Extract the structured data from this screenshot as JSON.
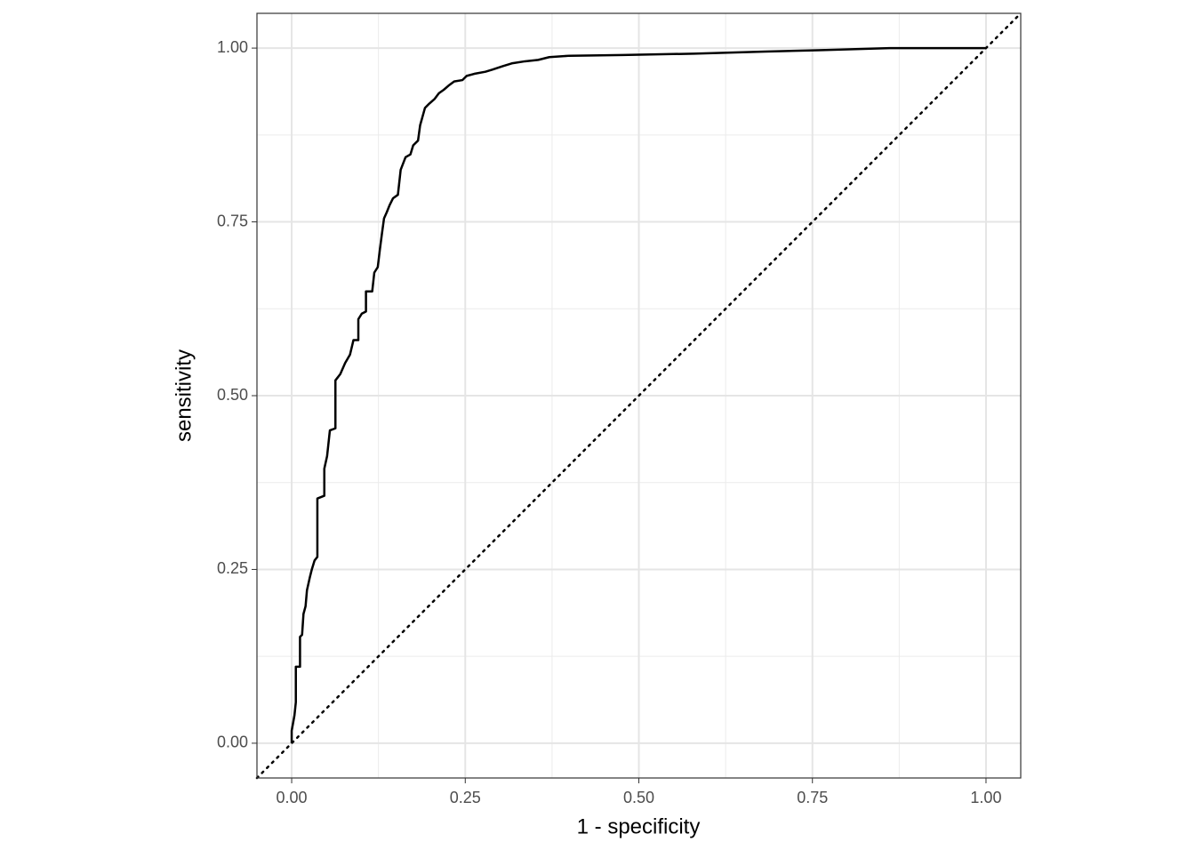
{
  "chart_data": {
    "type": "line",
    "x_label": "1 - specificity",
    "y_label": "sensitivity",
    "xlim": [
      -0.05,
      1.05
    ],
    "ylim": [
      -0.05,
      1.05
    ],
    "xticks": [
      {
        "value": 0,
        "label": "0.00"
      },
      {
        "value": 0.25,
        "label": "0.25"
      },
      {
        "value": 0.5,
        "label": "0.50"
      },
      {
        "value": 0.75,
        "label": "0.75"
      },
      {
        "value": 1,
        "label": "1.00"
      }
    ],
    "yticks": [
      {
        "value": 0,
        "label": "0.00"
      },
      {
        "value": 0.25,
        "label": "0.25"
      },
      {
        "value": 0.5,
        "label": "0.50"
      },
      {
        "value": 0.75,
        "label": "0.75"
      },
      {
        "value": 1,
        "label": "1.00"
      }
    ],
    "xminor": [
      0.125,
      0.375,
      0.625,
      0.875
    ],
    "yminor": [
      0.125,
      0.375,
      0.625,
      0.875
    ],
    "grid": true,
    "reference_line": {
      "slope": 1,
      "intercept": 0,
      "style": "dotted",
      "color": "#000000"
    },
    "series": [
      {
        "color": "#000000",
        "x": [
          0,
          0,
          0.004,
          0.006,
          0.006,
          0.012,
          0.012,
          0.015,
          0.017,
          0.02,
          0.022,
          0.026,
          0.029,
          0.033,
          0.037,
          0.037,
          0.047,
          0.047,
          0.051,
          0.055,
          0.063,
          0.063,
          0.07,
          0.077,
          0.084,
          0.089,
          0.096,
          0.096,
          0.101,
          0.107,
          0.107,
          0.116,
          0.119,
          0.124,
          0.127,
          0.13,
          0.133,
          0.137,
          0.141,
          0.146,
          0.153,
          0.157,
          0.164,
          0.171,
          0.175,
          0.182,
          0.185,
          0.192,
          0.198,
          0.206,
          0.212,
          0.219,
          0.226,
          0.234,
          0.246,
          0.252,
          0.263,
          0.279,
          0.289,
          0.304,
          0.317,
          0.336,
          0.355,
          0.371,
          0.4,
          0.477,
          0.579,
          0.682,
          0.758,
          0.861,
          1
        ],
        "values": [
          0,
          0.018,
          0.04,
          0.059,
          0.11,
          0.11,
          0.153,
          0.156,
          0.186,
          0.197,
          0.22,
          0.238,
          0.25,
          0.263,
          0.268,
          0.352,
          0.356,
          0.395,
          0.413,
          0.45,
          0.453,
          0.522,
          0.531,
          0.547,
          0.559,
          0.58,
          0.58,
          0.61,
          0.618,
          0.621,
          0.65,
          0.65,
          0.677,
          0.685,
          0.71,
          0.733,
          0.755,
          0.764,
          0.774,
          0.784,
          0.789,
          0.825,
          0.843,
          0.847,
          0.86,
          0.867,
          0.889,
          0.914,
          0.92,
          0.927,
          0.935,
          0.94,
          0.946,
          0.952,
          0.954,
          0.96,
          0.963,
          0.966,
          0.969,
          0.974,
          0.978,
          0.981,
          0.983,
          0.987,
          0.989,
          0.99,
          0.992,
          0.995,
          0.997,
          1.0,
          1
        ]
      }
    ]
  }
}
